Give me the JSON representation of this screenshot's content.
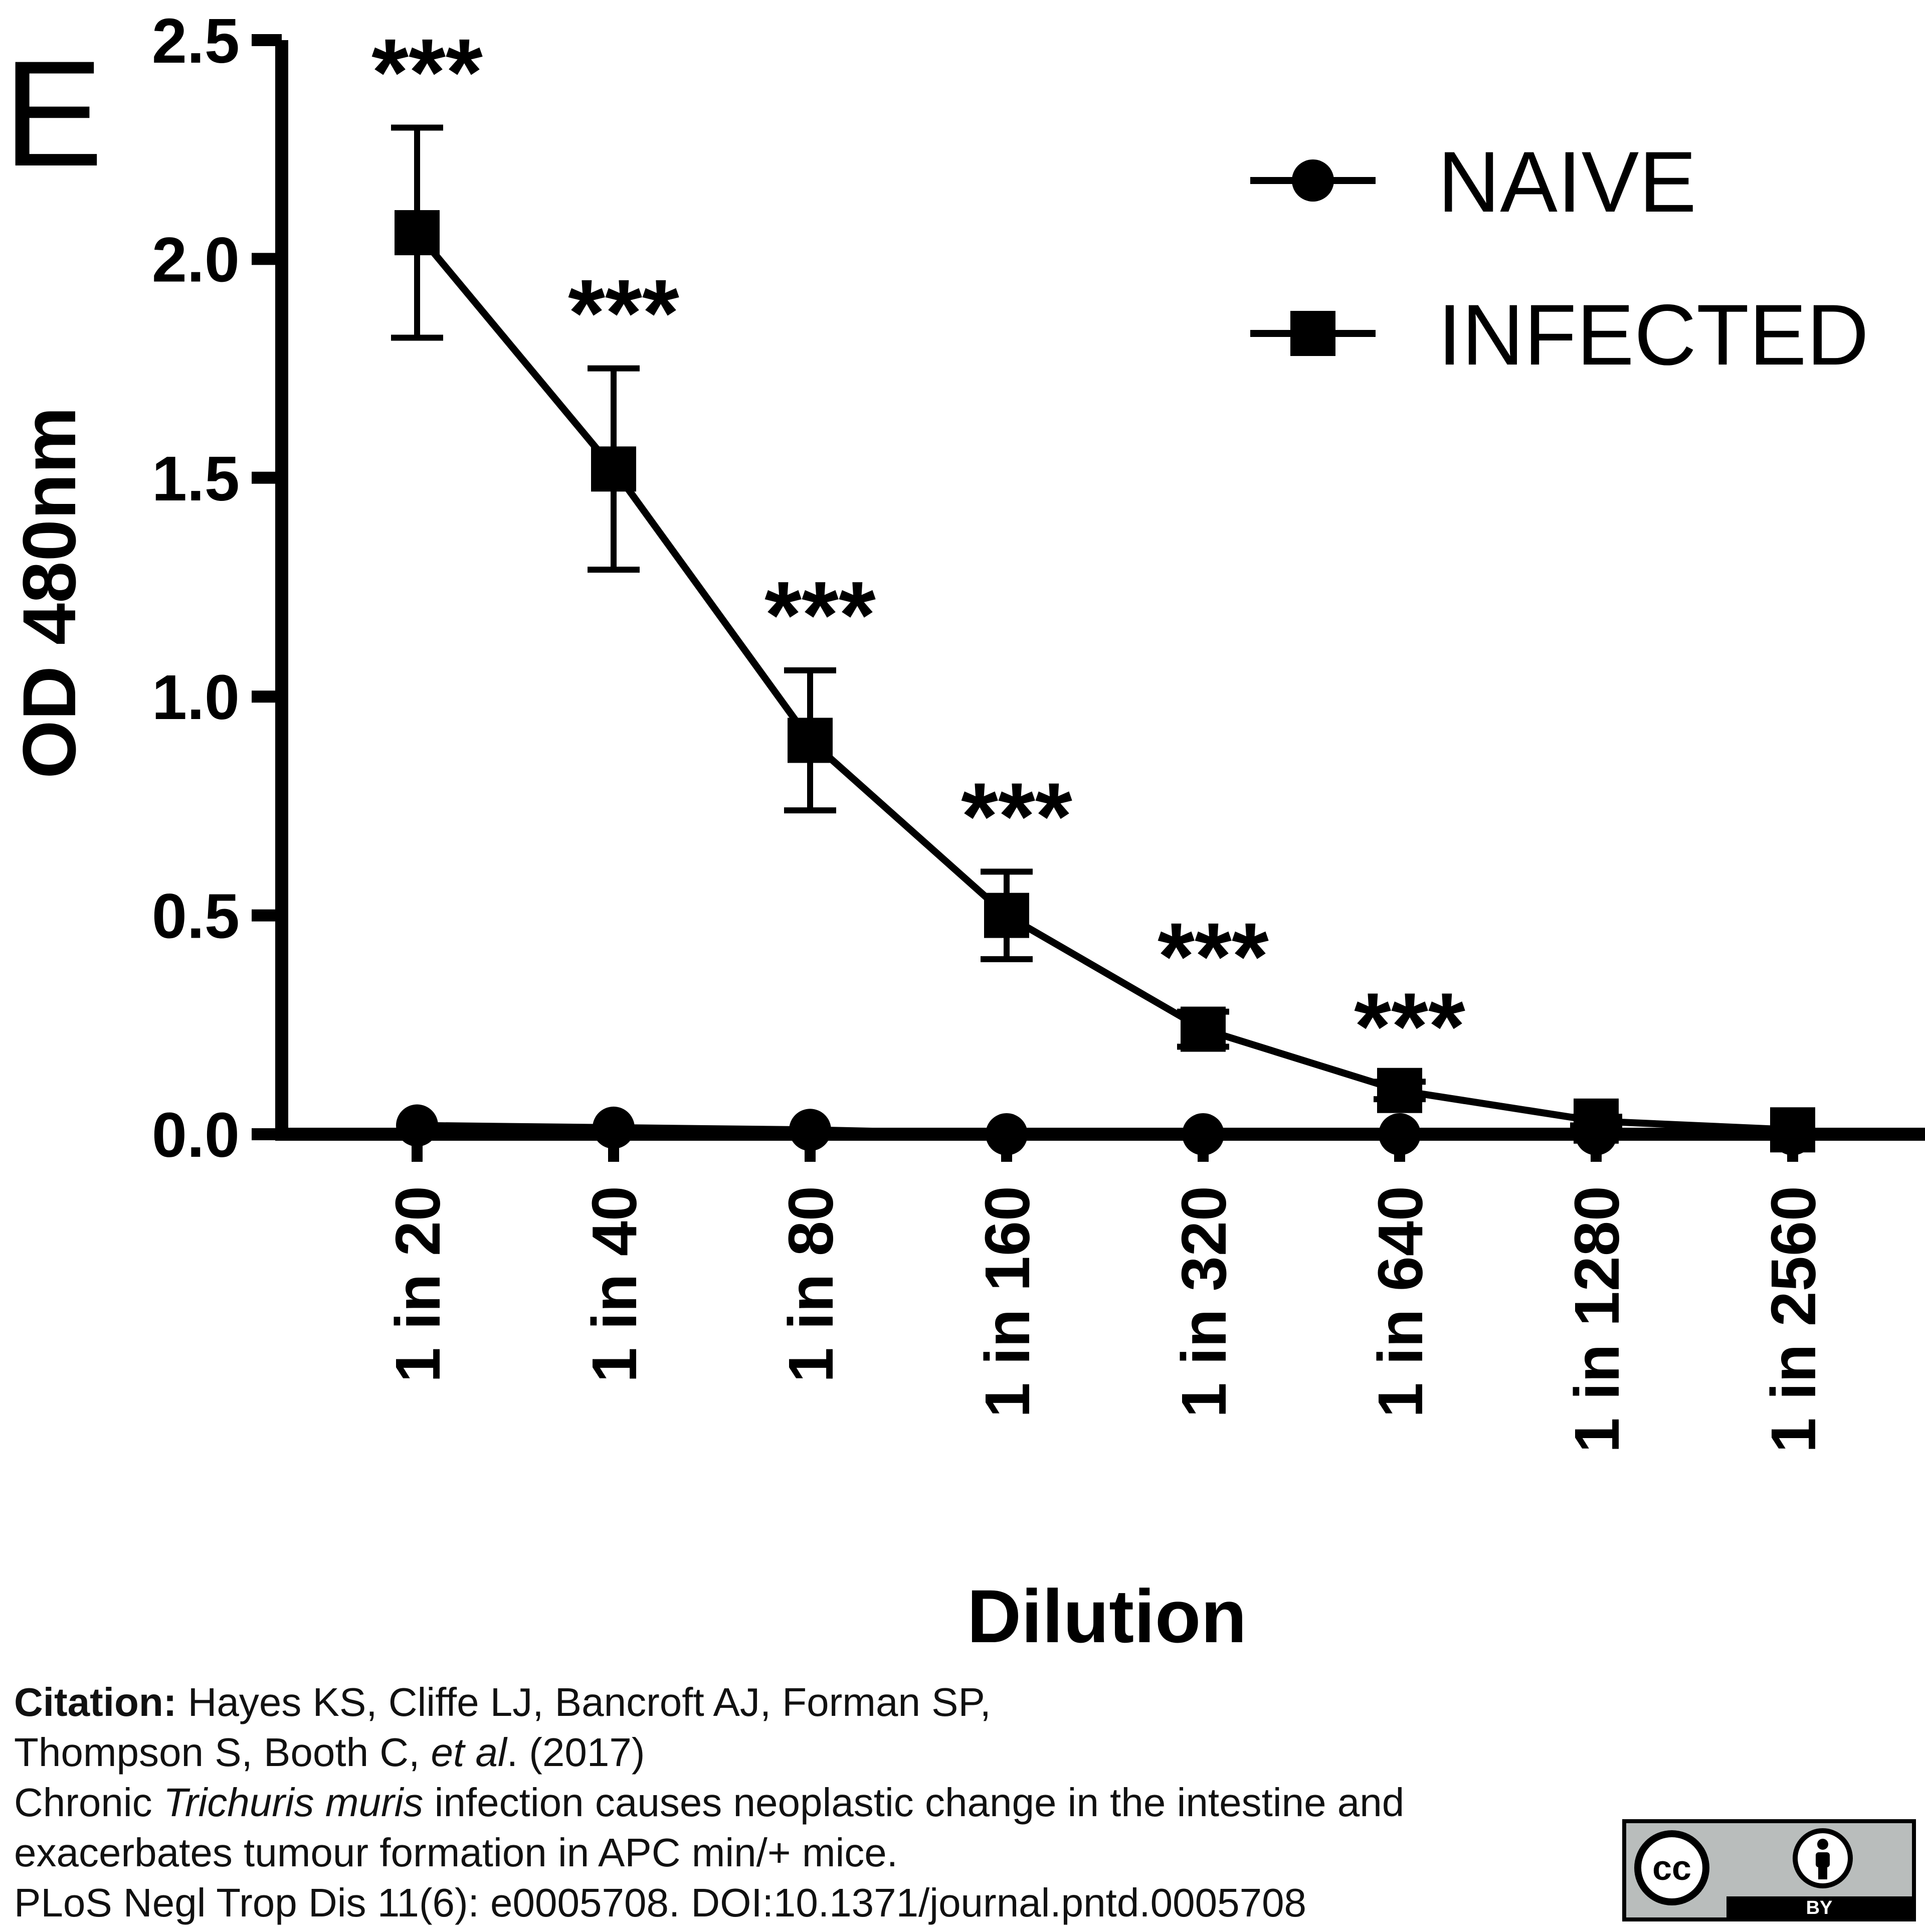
{
  "panel_label": "E",
  "chart_data": {
    "type": "line",
    "title": "",
    "xlabel": "Dilution",
    "ylabel": "OD 480nm",
    "ylim": [
      0,
      2.5
    ],
    "yticks": [
      "0.0",
      "0.5",
      "1.0",
      "1.5",
      "2.0",
      "2.5"
    ],
    "categories": [
      "1 in 20",
      "1 in 40",
      "1 in 80",
      "1 in 160",
      "1 in 320",
      "1 in 640",
      "1 in 1280",
      "1 in 2560"
    ],
    "series": [
      {
        "name": "NAIVE",
        "marker": "circle",
        "values": [
          0.02,
          0.015,
          0.01,
          0.0,
          0.0,
          0.0,
          0.0,
          0.0
        ],
        "error": [
          0,
          0,
          0,
          0,
          0,
          0,
          0,
          0
        ]
      },
      {
        "name": "INFECTED",
        "marker": "square",
        "values": [
          2.06,
          1.52,
          0.9,
          0.5,
          0.24,
          0.1,
          0.03,
          0.01
        ],
        "error": [
          0.24,
          0.23,
          0.16,
          0.1,
          0.04,
          0.02,
          0.01,
          0.0
        ]
      }
    ],
    "annotations": [
      "***",
      "***",
      "***",
      "***",
      "***",
      "***",
      "",
      ""
    ],
    "legend": "top-right",
    "grid": false
  },
  "citation": {
    "label": "Citation:",
    "line1": " Hayes KS, Cliffe LJ, Bancroft AJ, Forman SP,",
    "line2a": "Thompson S, Booth C, ",
    "line2b": "et al",
    "line2c": ". (2017)",
    "line3a": "Chronic ",
    "line3b": "Trichuris muris",
    "line3c": " infection causes neoplastic change in the intestine and",
    "line4": "exacerbates tumour formation in APC min/+ mice.",
    "line5": "PLoS Negl Trop Dis 11(6): e0005708. DOI:10.1371/journal.pntd.0005708"
  },
  "license": {
    "cc": "cc",
    "by": "BY"
  }
}
